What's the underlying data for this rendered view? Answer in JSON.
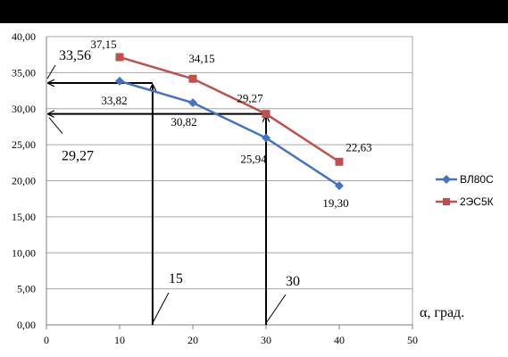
{
  "chart_data": {
    "type": "line",
    "x": [
      10,
      20,
      30,
      40
    ],
    "series": [
      {
        "name": "ВЛ80С",
        "values": [
          33.82,
          30.82,
          25.94,
          19.3
        ],
        "color": "#4472C4",
        "marker": "diamond",
        "labels": [
          "33,82",
          "30,82",
          "25,94",
          "19,30"
        ]
      },
      {
        "name": "2ЭС5К",
        "values": [
          37.15,
          34.15,
          29.27,
          22.63
        ],
        "color": "#C0504D",
        "marker": "square",
        "labels": [
          "37,15",
          "34,15",
          "29,27",
          "22,63"
        ]
      }
    ],
    "xlim": [
      0,
      50
    ],
    "ylim": [
      0,
      40
    ],
    "xticks": [
      0,
      10,
      20,
      30,
      40,
      50
    ],
    "xtick_labels": [
      "0",
      "10",
      "20",
      "30",
      "40",
      "50"
    ],
    "yticks": [
      0,
      5,
      10,
      15,
      20,
      25,
      30,
      35,
      40
    ],
    "ytick_labels": [
      "0,00",
      "5,00",
      "10,00",
      "15,00",
      "20,00",
      "25,00",
      "30,00",
      "35,00",
      "40,00"
    ],
    "xlabel": "α, град.",
    "ylabel": "",
    "grid": "horizontal",
    "legend_position": "right",
    "annotations": [
      {
        "text": "33,56",
        "y": 33.56
      },
      {
        "text": "29,27",
        "y": 29.27
      },
      {
        "text": "15",
        "x": 15
      },
      {
        "text": "30",
        "x": 30
      }
    ]
  }
}
